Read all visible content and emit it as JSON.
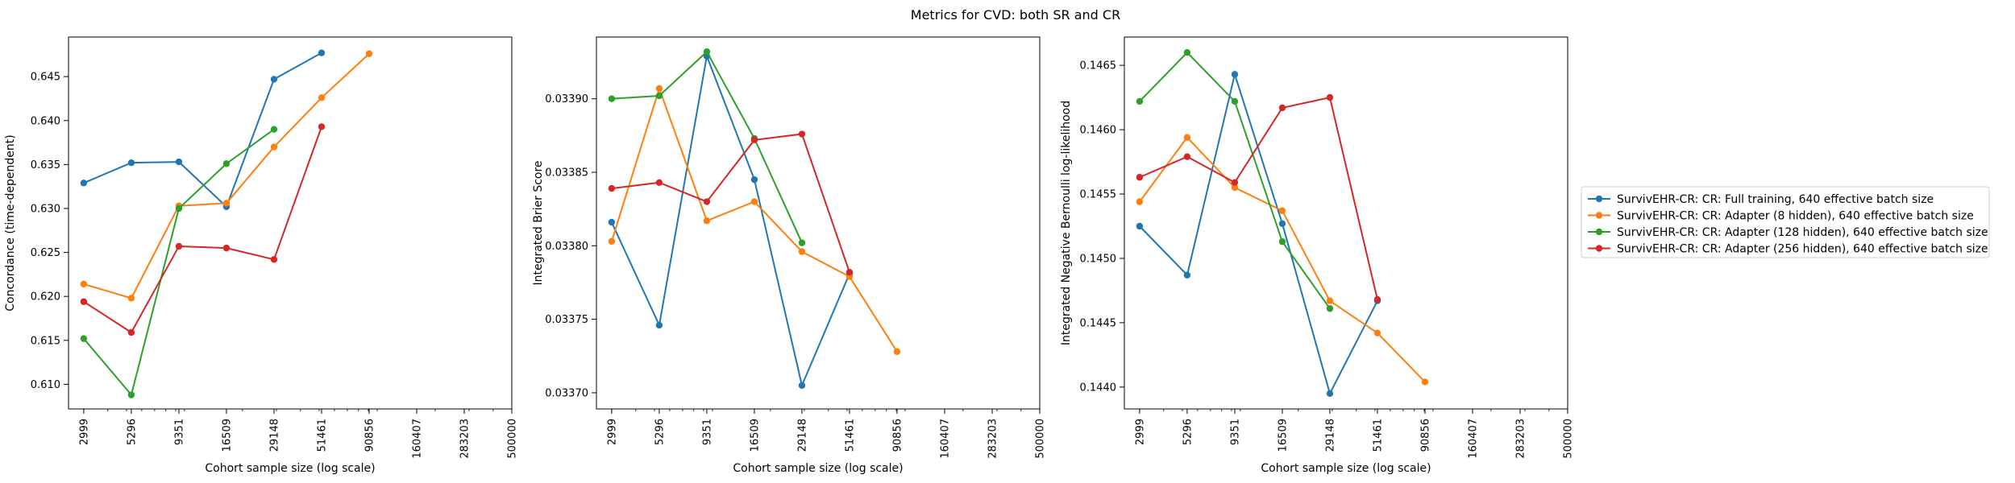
{
  "figure": {
    "title": "Metrics for CVD: both SR and CR"
  },
  "legend": {
    "placement": "right"
  },
  "series_styles": [
    {
      "name": "SurvivEHR-CR: CR: Full training, 640 effective batch size",
      "color": "#1f77b4"
    },
    {
      "name": "SurvivEHR-CR: CR: Adapter (8 hidden), 640 effective batch size",
      "color": "#ff7f0e"
    },
    {
      "name": "SurvivEHR-CR: CR: Adapter (128 hidden), 640 effective batch size",
      "color": "#2ca02c"
    },
    {
      "name": "SurvivEHR-CR: CR: Adapter (256 hidden), 640 effective batch size",
      "color": "#d62728"
    }
  ],
  "chart_data": [
    {
      "type": "line",
      "xlabel": "Cohort sample size (log scale)",
      "ylabel": "Concordance (time-dependent)",
      "xscale": "log",
      "xlim": [
        2500,
        500000
      ],
      "ylim": [
        0.6072,
        0.6495
      ],
      "x_ticks": [
        "2999",
        "5296",
        "9351",
        "16509",
        "29148",
        "51461",
        "90856",
        "160407",
        "283203",
        "500000"
      ],
      "y_ticks": [
        "0.610",
        "0.615",
        "0.620",
        "0.625",
        "0.630",
        "0.635",
        "0.640",
        "0.645"
      ],
      "grid": false,
      "series": [
        {
          "name": "SurvivEHR-CR: CR: Full training, 640 effective batch size",
          "x": [
            2999,
            5296,
            9351,
            16509,
            29148,
            51461
          ],
          "y": [
            0.6329,
            0.6352,
            0.6353,
            0.6302,
            0.6447,
            0.6477
          ]
        },
        {
          "name": "SurvivEHR-CR: CR: Adapter (8 hidden), 640 effective batch size",
          "x": [
            2999,
            5296,
            9351,
            16509,
            29148,
            51461,
            90856
          ],
          "y": [
            0.6214,
            0.6198,
            0.6303,
            0.6306,
            0.637,
            0.6426,
            0.6476
          ]
        },
        {
          "name": "SurvivEHR-CR: CR: Adapter (128 hidden), 640 effective batch size",
          "x": [
            2999,
            5296,
            9351,
            16509,
            29148
          ],
          "y": [
            0.6152,
            0.6088,
            0.63,
            0.6351,
            0.639
          ]
        },
        {
          "name": "SurvivEHR-CR: CR: Adapter (256 hidden), 640 effective batch size",
          "x": [
            2999,
            5296,
            9351,
            16509,
            29148,
            51461
          ],
          "y": [
            0.6194,
            0.6159,
            0.6257,
            0.6255,
            0.6242,
            0.6393
          ]
        }
      ]
    },
    {
      "type": "line",
      "xlabel": "Cohort sample size (log scale)",
      "ylabel": "Integrated Brier Score",
      "xscale": "log",
      "xlim": [
        2500,
        500000
      ],
      "ylim": [
        0.033689,
        0.033942
      ],
      "x_ticks": [
        "2999",
        "5296",
        "9351",
        "16509",
        "29148",
        "51461",
        "90856",
        "160407",
        "283203",
        "500000"
      ],
      "y_ticks": [
        "0.03370",
        "0.03375",
        "0.03380",
        "0.03385",
        "0.03390"
      ],
      "grid": false,
      "series": [
        {
          "name": "SurvivEHR-CR: CR: Full training, 640 effective batch size",
          "x": [
            2999,
            5296,
            9351,
            16509,
            29148,
            51461
          ],
          "y": [
            0.033816,
            0.033746,
            0.033929,
            0.033845,
            0.033705,
            0.033781
          ]
        },
        {
          "name": "SurvivEHR-CR: CR: Adapter (8 hidden), 640 effective batch size",
          "x": [
            2999,
            5296,
            9351,
            16509,
            29148,
            51461,
            90856
          ],
          "y": [
            0.033803,
            0.033907,
            0.033817,
            0.03383,
            0.033796,
            0.033779,
            0.033728
          ]
        },
        {
          "name": "SurvivEHR-CR: CR: Adapter (128 hidden), 640 effective batch size",
          "x": [
            2999,
            5296,
            9351,
            16509,
            29148
          ],
          "y": [
            0.0339,
            0.033902,
            0.033932,
            0.033873,
            0.033802
          ]
        },
        {
          "name": "SurvivEHR-CR: CR: Adapter (256 hidden), 640 effective batch size",
          "x": [
            2999,
            5296,
            9351,
            16509,
            29148,
            51461
          ],
          "y": [
            0.033839,
            0.033843,
            0.03383,
            0.033872,
            0.033876,
            0.033782
          ]
        }
      ]
    },
    {
      "type": "line",
      "xlabel": "Cohort sample size (log scale)",
      "ylabel": "Integrated Negative Bernoulli log-likelihood",
      "xscale": "log",
      "xlim": [
        2500,
        500000
      ],
      "ylim": [
        0.14383,
        0.14672
      ],
      "x_ticks": [
        "2999",
        "5296",
        "9351",
        "16509",
        "29148",
        "51461",
        "90856",
        "160407",
        "283203",
        "500000"
      ],
      "y_ticks": [
        "0.1440",
        "0.1445",
        "0.1450",
        "0.1455",
        "0.1460",
        "0.1465"
      ],
      "grid": false,
      "series": [
        {
          "name": "SurvivEHR-CR: CR: Full training, 640 effective batch size",
          "x": [
            2999,
            5296,
            9351,
            16509,
            29148,
            51461
          ],
          "y": [
            0.14525,
            0.14487,
            0.14643,
            0.14527,
            0.14395,
            0.14467
          ]
        },
        {
          "name": "SurvivEHR-CR: CR: Adapter (8 hidden), 640 effective batch size",
          "x": [
            2999,
            5296,
            9351,
            16509,
            29148,
            51461,
            90856
          ],
          "y": [
            0.14544,
            0.14594,
            0.14555,
            0.14537,
            0.14467,
            0.14442,
            0.14404
          ]
        },
        {
          "name": "SurvivEHR-CR: CR: Adapter (128 hidden), 640 effective batch size",
          "x": [
            2999,
            5296,
            9351,
            16509,
            29148
          ],
          "y": [
            0.14622,
            0.1466,
            0.14622,
            0.14513,
            0.14461
          ]
        },
        {
          "name": "SurvivEHR-CR: CR: Adapter (256 hidden), 640 effective batch size",
          "x": [
            2999,
            5296,
            9351,
            16509,
            29148,
            51461
          ],
          "y": [
            0.14563,
            0.14579,
            0.14559,
            0.14617,
            0.14625,
            0.14468
          ]
        }
      ]
    }
  ]
}
